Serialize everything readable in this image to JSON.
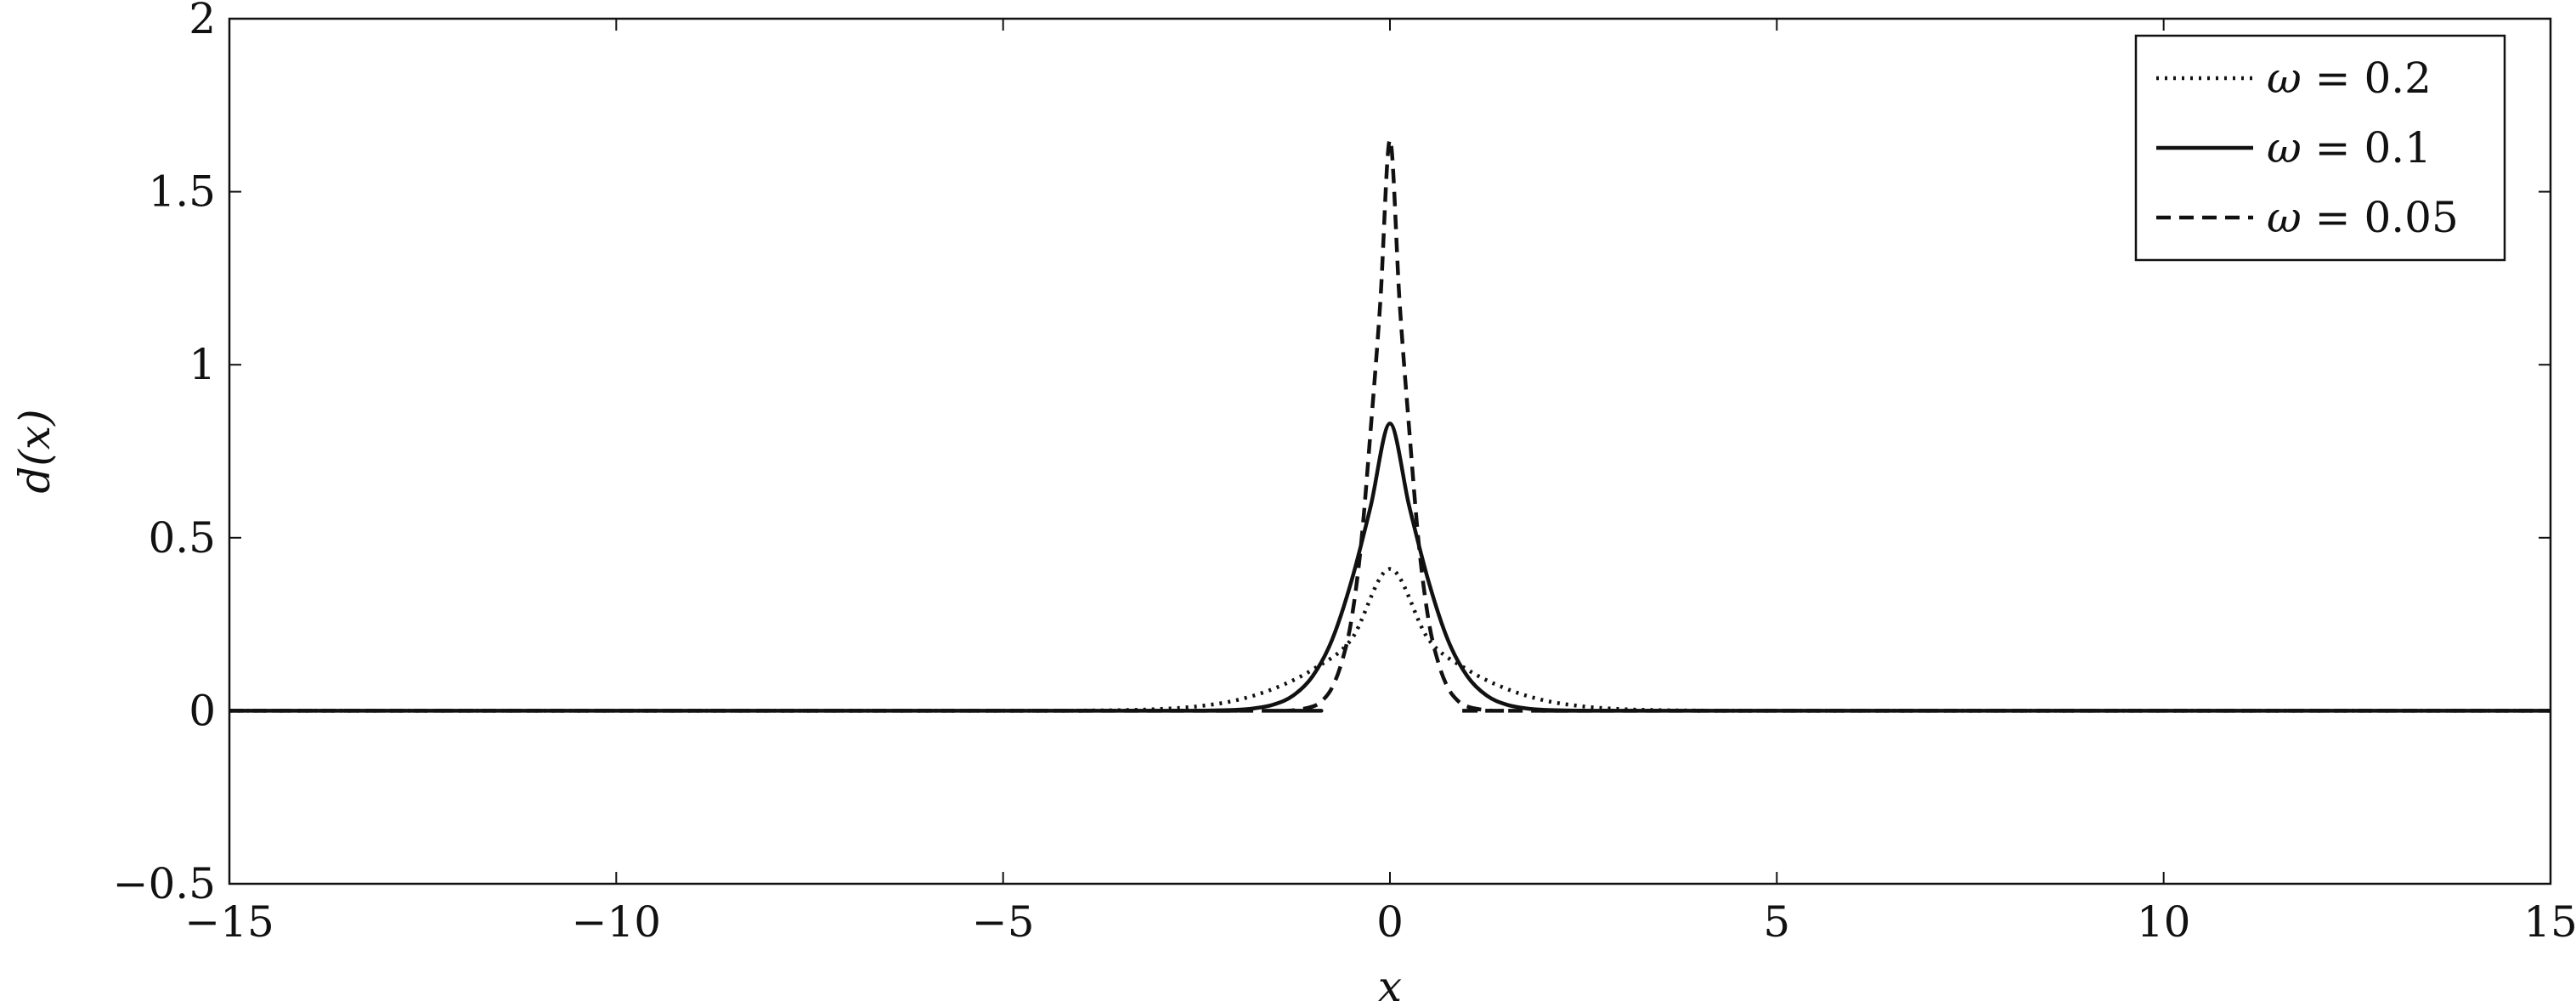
{
  "chart_data": {
    "type": "line",
    "title": "",
    "xlabel": "x",
    "ylabel": "d(x)",
    "xlim": [
      -15,
      15
    ],
    "ylim": [
      -0.5,
      2
    ],
    "xticks": [
      -15,
      -10,
      -5,
      0,
      5,
      10,
      15
    ],
    "xtick_labels": [
      "−15",
      "−10",
      "−5",
      "0",
      "5",
      "10",
      "15"
    ],
    "yticks": [
      -0.5,
      0,
      0.5,
      1,
      1.5,
      2
    ],
    "ytick_labels": [
      "−0.5",
      "0",
      "0.5",
      "1",
      "1.5",
      "2"
    ],
    "grid": false,
    "legend_position": "top-right",
    "series": [
      {
        "name": "ω = 0.2",
        "legend_symbol": "ω",
        "legend_value": "0.2",
        "style": "dotted",
        "x": [
          -15,
          -5,
          -4,
          -3.5,
          -3,
          -2.5,
          -2,
          -1.5,
          -1,
          -0.5,
          0,
          0.5,
          1,
          1.5,
          2,
          2.5,
          3,
          3.5,
          4,
          5,
          15
        ],
        "values": [
          0,
          0,
          0.0006,
          0.0017,
          0.0048,
          0.0125,
          0.0297,
          0.064,
          0.119,
          0.206,
          0.41,
          0.206,
          0.119,
          0.064,
          0.0297,
          0.0125,
          0.0048,
          0.0017,
          0.0006,
          0,
          0
        ]
      },
      {
        "name": "ω = 0.1",
        "legend_symbol": "ω",
        "legend_value": "0.1",
        "style": "solid",
        "x": [
          -15,
          -3,
          -2.5,
          -2,
          -1.75,
          -1.5,
          -1.25,
          -1,
          -0.75,
          -0.5,
          -0.25,
          0,
          0.25,
          0.5,
          0.75,
          1,
          1.25,
          1.5,
          1.75,
          2,
          2.5,
          3,
          15
        ],
        "values": [
          0,
          0,
          0.0003,
          0.0026,
          0.0072,
          0.0183,
          0.044,
          0.0997,
          0.204,
          0.373,
          0.59,
          0.83,
          0.59,
          0.373,
          0.204,
          0.0997,
          0.044,
          0.0183,
          0.0072,
          0.0026,
          0.0003,
          0,
          0
        ]
      },
      {
        "name": "ω = 0.05",
        "legend_symbol": "ω",
        "legend_value": "0.05",
        "style": "dashed",
        "x": [
          -15,
          -2,
          -1.5,
          -1.25,
          -1,
          -0.875,
          -0.75,
          -0.625,
          -0.5,
          -0.375,
          -0.25,
          -0.125,
          0,
          0.125,
          0.25,
          0.375,
          0.5,
          0.625,
          0.75,
          0.875,
          1,
          1.25,
          1.5,
          2,
          15
        ],
        "values": [
          0,
          0,
          0.0001,
          0.0014,
          0.0122,
          0.0294,
          0.0661,
          0.139,
          0.26,
          0.477,
          0.81,
          1.18,
          1.65,
          1.18,
          0.81,
          0.477,
          0.26,
          0.139,
          0.0661,
          0.0294,
          0.0122,
          0.0014,
          0.0001,
          0,
          0
        ]
      }
    ]
  }
}
